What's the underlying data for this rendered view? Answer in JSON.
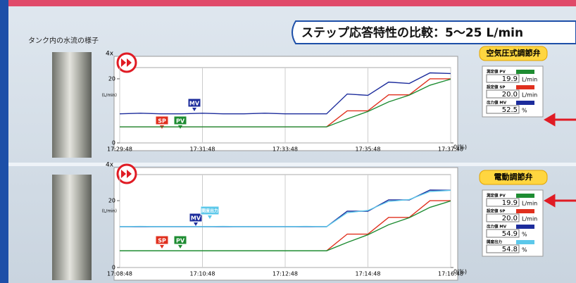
{
  "header": {
    "title": "ステップ応答特性の比較：5〜25 L/min",
    "caption": "タンク内の水流の様子"
  },
  "chart_data": [
    {
      "type": "line",
      "speed": "4x",
      "ylabel": "(L/min)",
      "x": [
        "17:29:48",
        "17:30:18",
        "17:30:48",
        "17:31:18",
        "17:31:48",
        "17:32:18",
        "17:32:48",
        "17:33:18",
        "17:33:48",
        "17:34:18",
        "17:34:48",
        "17:35:18",
        "17:35:48",
        "17:36:18",
        "17:36:48",
        "17:37:18",
        "17:37:48"
      ],
      "xticks": [
        "17:29:48",
        "17:31:48",
        "17:33:48",
        "17:35:48",
        "17:37:48"
      ],
      "ylim": [
        0,
        23.5
      ],
      "yticks": [
        0,
        20
      ],
      "y2lim": [
        0,
        57
      ],
      "y2ticks": [
        {
          "value": 0,
          "label": "0(%)"
        }
      ],
      "grid": "x",
      "series": [
        {
          "name": "MV",
          "color": "#1c2c9c",
          "axis": "y2",
          "values": [
            22,
            22.5,
            22,
            22,
            22.5,
            22,
            22,
            22.5,
            22,
            22,
            22,
            37,
            36,
            46,
            45,
            53,
            52.5
          ]
        },
        {
          "name": "SP",
          "color": "#e0301e",
          "values": [
            5,
            5,
            5,
            5,
            5,
            5,
            5,
            5,
            5,
            5,
            5,
            10,
            10,
            15,
            15,
            20,
            20
          ]
        },
        {
          "name": "PV",
          "color": "#1e8c32",
          "values": [
            5,
            5,
            5,
            5,
            5,
            5,
            5,
            5,
            5,
            5,
            5,
            7.5,
            9.8,
            12.8,
            14.9,
            18,
            19.9
          ]
        }
      ]
    },
    {
      "type": "line",
      "speed": "4x",
      "ylabel": "(L/min)",
      "x": [
        "17:08:48",
        "17:09:18",
        "17:09:48",
        "17:10:18",
        "17:10:48",
        "17:11:18",
        "17:11:48",
        "17:12:18",
        "17:12:48",
        "17:13:18",
        "17:13:48",
        "17:14:18",
        "17:14:48",
        "17:15:18",
        "17:15:48",
        "17:16:18",
        "17:16:48"
      ],
      "xticks": [
        "17:08:48",
        "17:10:48",
        "17:12:48",
        "17:14:48",
        "17:16:48"
      ],
      "ylim": [
        0,
        27.8
      ],
      "yticks": [
        0,
        20
      ],
      "y2lim": [
        0,
        66
      ],
      "y2ticks": [
        {
          "value": 0,
          "label": "0(%)"
        }
      ],
      "grid": "x",
      "series": [
        {
          "name": "MV",
          "color": "#1c2c9c",
          "axis": "y2",
          "values": [
            29,
            29,
            29,
            29,
            29,
            29,
            29,
            29,
            29,
            29,
            29,
            40,
            40,
            48,
            48,
            55,
            54.9
          ]
        },
        {
          "name": "開度出力",
          "color": "#5cc8ea",
          "axis": "y2",
          "values": [
            29,
            29.2,
            29,
            29.1,
            29,
            29.2,
            29,
            29.1,
            29,
            29.2,
            29,
            39,
            40.5,
            47,
            48.3,
            54,
            54.8
          ]
        },
        {
          "name": "SP",
          "color": "#e0301e",
          "values": [
            5,
            5,
            5,
            5,
            5,
            5,
            5,
            5,
            5,
            5,
            5,
            10,
            10,
            15,
            15,
            20,
            20
          ]
        },
        {
          "name": "PV",
          "color": "#1e8c32",
          "values": [
            5,
            5,
            5,
            5,
            5,
            5,
            5,
            5,
            5,
            5,
            5,
            7.5,
            9.8,
            12.8,
            14.9,
            18,
            19.9
          ]
        }
      ]
    }
  ],
  "panels": [
    {
      "title": "空気圧式調節弁",
      "rows": [
        {
          "label": "測定値 PV",
          "value": "19.9",
          "unit": "L/min",
          "color": "#1e8c32"
        },
        {
          "label": "設定値 SP",
          "value": "20.0",
          "unit": "L/min",
          "color": "#e0301e"
        },
        {
          "label": "出力値 MV",
          "value": "52.5",
          "unit": "%",
          "color": "#1c2c9c"
        }
      ]
    },
    {
      "title": "電動調節弁",
      "rows": [
        {
          "label": "測定値 PV",
          "value": "19.9",
          "unit": "L/min",
          "color": "#1e8c32"
        },
        {
          "label": "設定値 SP",
          "value": "20.0",
          "unit": "L/min",
          "color": "#e0301e"
        },
        {
          "label": "出力値 MV",
          "value": "54.9",
          "unit": "%",
          "color": "#1c2c9c"
        },
        {
          "label": "開度出力",
          "value": "54.8",
          "unit": "%",
          "color": "#5cc8ea"
        }
      ]
    }
  ]
}
